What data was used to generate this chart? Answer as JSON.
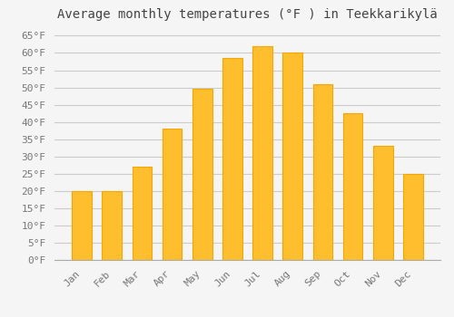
{
  "title": "Average monthly temperatures (°F ) in Teekkarikylä",
  "months": [
    "Jan",
    "Feb",
    "Mar",
    "Apr",
    "May",
    "Jun",
    "Jul",
    "Aug",
    "Sep",
    "Oct",
    "Nov",
    "Dec"
  ],
  "values": [
    20,
    20,
    27,
    38,
    49.5,
    58.5,
    62,
    60,
    51,
    42.5,
    33,
    25
  ],
  "bar_color": "#FFBE2D",
  "bar_edge_color": "#F5A800",
  "background_color": "#f5f5f5",
  "grid_color": "#cccccc",
  "ylim": [
    0,
    68
  ],
  "yticks": [
    0,
    5,
    10,
    15,
    20,
    25,
    30,
    35,
    40,
    45,
    50,
    55,
    60,
    65
  ],
  "title_fontsize": 10,
  "tick_fontsize": 8,
  "tick_font_color": "#777777",
  "title_color": "#444444"
}
